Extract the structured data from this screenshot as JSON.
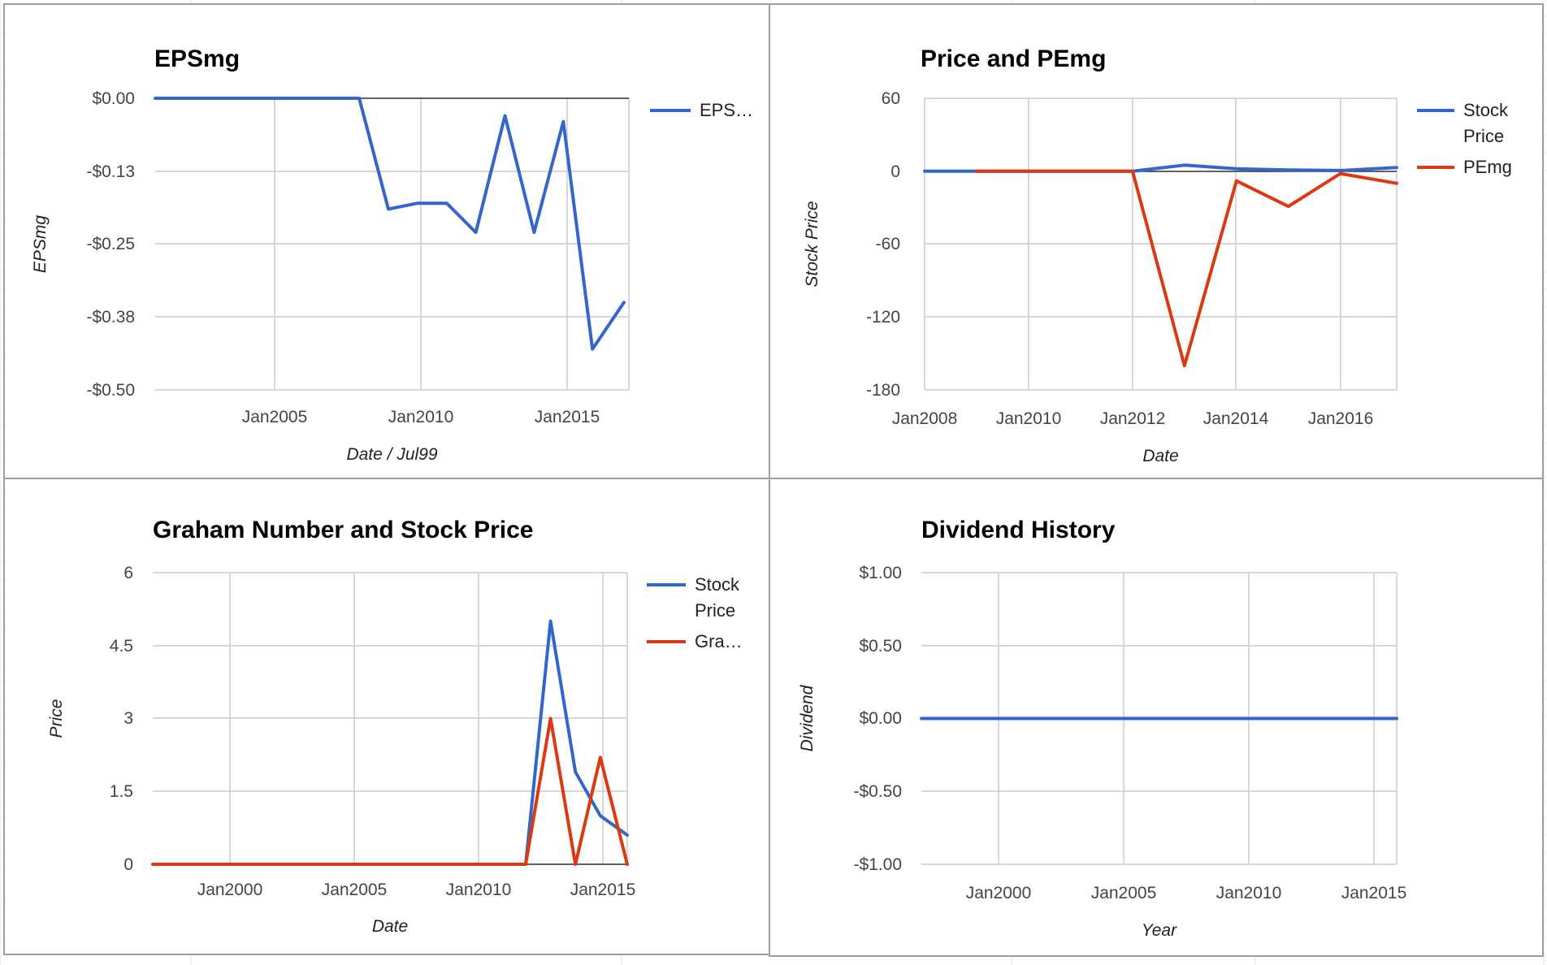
{
  "chart_data": [
    {
      "type": "line",
      "title": "EPSmg",
      "xlabel": "Date / Jul99",
      "ylabel": "EPSmg",
      "y_ticks": [
        "$0.00",
        "-$0.13",
        "-$0.25",
        "-$0.38",
        "-$0.50"
      ],
      "x_ticks": [
        "Jan2005",
        "Jan2010",
        "Jan2015"
      ],
      "ylim": [
        -0.5,
        0
      ],
      "xlim": [
        "2001-01",
        "2017-04"
      ],
      "grid": true,
      "legend_position": "right",
      "series": [
        {
          "name": "EPS…",
          "color": "#3366cc",
          "x": [
            "2001-01",
            "2008-01",
            "2009-01",
            "2010-01",
            "2011-01",
            "2012-01",
            "2013-01",
            "2014-01",
            "2015-01",
            "2016-01",
            "2017-02"
          ],
          "values": [
            0,
            0,
            -0.19,
            -0.18,
            -0.18,
            -0.23,
            -0.03,
            -0.23,
            -0.04,
            -0.43,
            -0.35
          ]
        }
      ]
    },
    {
      "type": "line",
      "title": "Price and PEmg",
      "xlabel": "Date",
      "ylabel": "Stock Price",
      "y_ticks": [
        "60",
        "0",
        "-60",
        "-120",
        "-180"
      ],
      "x_ticks": [
        "Jan2008",
        "Jan2010",
        "Jan2012",
        "Jan2014",
        "Jan2016"
      ],
      "ylim": [
        -180,
        60
      ],
      "xlim": [
        "2008-01",
        "2017-02"
      ],
      "grid": true,
      "legend_position": "right",
      "series": [
        {
          "name": "Stock Price",
          "color": "#3366cc",
          "x": [
            "2008-01",
            "2009-01",
            "2010-01",
            "2011-01",
            "2012-01",
            "2013-01",
            "2014-01",
            "2015-01",
            "2016-01",
            "2017-02"
          ],
          "values": [
            0,
            0,
            0,
            0,
            0,
            5,
            2,
            1,
            0.6,
            3
          ]
        },
        {
          "name": "PEmg",
          "color": "#dc3912",
          "x": [
            "2009-01",
            "2010-01",
            "2011-01",
            "2012-01",
            "2013-01",
            "2014-01",
            "2015-01",
            "2016-01",
            "2017-02"
          ],
          "values": [
            0,
            0,
            0,
            0,
            -160,
            -8,
            -29,
            -2,
            -10
          ]
        }
      ]
    },
    {
      "type": "line",
      "title": "Graham Number and Stock Price",
      "xlabel": "Date",
      "ylabel": "Price",
      "y_ticks": [
        "6",
        "4.5",
        "3",
        "1.5",
        "0"
      ],
      "x_ticks": [
        "Jan2000",
        "Jan2005",
        "Jan2010",
        "Jan2015"
      ],
      "ylim": [
        0,
        6
      ],
      "xlim": [
        "1997-01",
        "2016-02"
      ],
      "grid": true,
      "legend_position": "right",
      "series": [
        {
          "name": "Stock Price",
          "color": "#3366cc",
          "x": [
            "1997-01",
            "2012-01",
            "2013-01",
            "2014-01",
            "2015-01",
            "2016-02"
          ],
          "values": [
            0,
            0,
            5,
            1.9,
            1.0,
            0.6
          ]
        },
        {
          "name": "Gra…",
          "color": "#dc3912",
          "x": [
            "1997-01",
            "2012-01",
            "2013-01",
            "2014-01",
            "2015-01",
            "2016-02"
          ],
          "values": [
            0,
            0,
            3,
            0,
            2.2,
            0
          ]
        }
      ]
    },
    {
      "type": "line",
      "title": "Dividend History",
      "xlabel": "Year",
      "ylabel": "Dividend",
      "y_ticks": [
        "$1.00",
        "$0.50",
        "$0.00",
        "-$0.50",
        "-$1.00"
      ],
      "x_ticks": [
        "Jan2000",
        "Jan2005",
        "Jan2010",
        "Jan2015"
      ],
      "ylim": [
        -1,
        1
      ],
      "xlim": [
        "1997-01",
        "2016-02"
      ],
      "grid": true,
      "legend_position": "none",
      "series": [
        {
          "color": "#3366cc",
          "x": [
            "1997-01",
            "2016-02"
          ],
          "values": [
            0,
            0
          ]
        }
      ]
    }
  ]
}
